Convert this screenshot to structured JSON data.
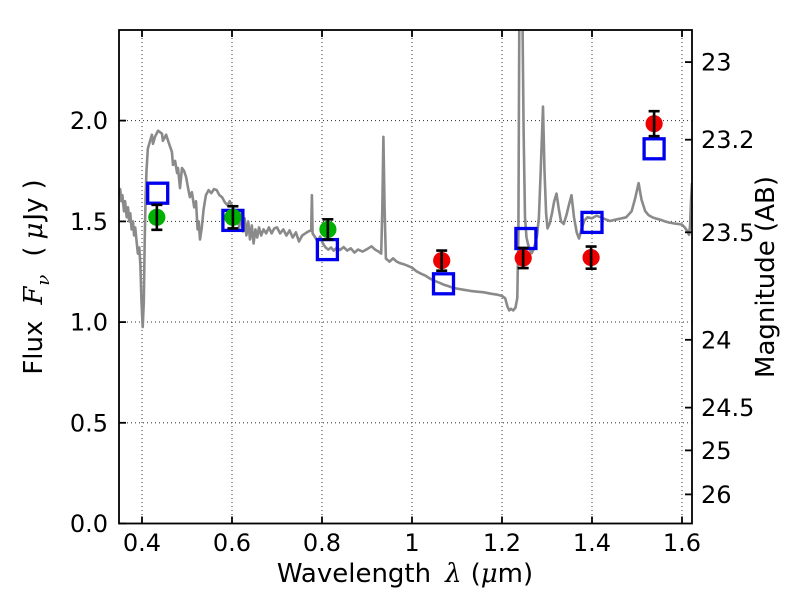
{
  "chart_data": {
    "type": "line",
    "title": "",
    "description": "Spectral energy distribution: gray model spectrum with photometric points (green/red filled circles with error bars, blue open squares) and dual flux/AB-magnitude axes",
    "xlabel_parts": [
      {
        "t": "Wavelength"
      },
      {
        "t": "λ",
        "i": 1,
        "dx": 14
      },
      {
        "t": "(",
        "dx": 9
      },
      {
        "t": "μ",
        "i": 1
      },
      {
        "t": "m)"
      }
    ],
    "ylabel_left_parts": [
      {
        "t": "Flux"
      },
      {
        "t": "F",
        "i": 1,
        "dx": 16
      },
      {
        "t": "ν",
        "i": 1,
        "sub": 1,
        "dx": 1
      },
      {
        "t": "(",
        "dx": 18
      },
      {
        "t": "μ",
        "i": 1,
        "dx": 7
      },
      {
        "t": "Jy",
        "dx": 2
      },
      {
        "t": ")",
        "dx": 8
      }
    ],
    "x_axis": {
      "min": 0.3489,
      "max": 1.6222,
      "ticks": [
        {
          "v": 0.4,
          "label": "0.4"
        },
        {
          "v": 0.6,
          "label": "0.6"
        },
        {
          "v": 0.8,
          "label": "0.8"
        },
        {
          "v": 1.0,
          "label": "1"
        },
        {
          "v": 1.2,
          "label": "1.2"
        },
        {
          "v": 1.4,
          "label": "1.4"
        },
        {
          "v": 1.6,
          "label": "1.6"
        }
      ]
    },
    "y_axis_left": {
      "min": 0,
      "max": 2.45,
      "ticks": [
        {
          "v": 0.0,
          "label": "0.0"
        },
        {
          "v": 0.5,
          "label": "0.5"
        },
        {
          "v": 1.0,
          "label": "1.0"
        },
        {
          "v": 1.5,
          "label": "1.5"
        },
        {
          "v": 2.0,
          "label": "2.0"
        }
      ]
    },
    "y_axis_right": {
      "label": "Magnitude (AB)",
      "ab_zeropoint_ujy": 23.9,
      "ticks": [
        {
          "v": 23,
          "label": "23"
        },
        {
          "v": 23.2,
          "label": "23.2"
        },
        {
          "v": 23.5,
          "label": "23.5"
        },
        {
          "v": 24,
          "label": "24"
        },
        {
          "v": 24.5,
          "label": "24.5"
        },
        {
          "v": 25,
          "label": "25"
        },
        {
          "v": 26,
          "label": "26"
        }
      ]
    },
    "grid": {
      "show": true,
      "style": "dotted"
    },
    "style": {
      "background": "#ffffff",
      "frame_color": "#000000",
      "grid_color": "#454545",
      "error_bar_color": "#000000"
    },
    "spectrum": {
      "id": "model-spectrum",
      "color": "#8a8a8a",
      "points": [
        [
          0.349,
          1.62
        ],
        [
          0.3515,
          1.66
        ],
        [
          0.354,
          1.6
        ],
        [
          0.3565,
          1.63
        ],
        [
          0.36,
          1.55
        ],
        [
          0.3625,
          1.6
        ],
        [
          0.366,
          1.52
        ],
        [
          0.369,
          1.57
        ],
        [
          0.3715,
          1.5
        ],
        [
          0.374,
          1.54
        ],
        [
          0.377,
          1.46
        ],
        [
          0.38,
          1.5
        ],
        [
          0.3825,
          1.43
        ],
        [
          0.385,
          1.47
        ],
        [
          0.388,
          1.4
        ],
        [
          0.391,
          1.34
        ],
        [
          0.394,
          1.37
        ],
        [
          0.3965,
          1.28
        ],
        [
          0.399,
          1.1
        ],
        [
          0.4015,
          0.975
        ],
        [
          0.404,
          1.1
        ],
        [
          0.406,
          1.4
        ],
        [
          0.408,
          1.62
        ],
        [
          0.41,
          1.75
        ],
        [
          0.413,
          1.86
        ],
        [
          0.418,
          1.9
        ],
        [
          0.422,
          1.93
        ],
        [
          0.4245,
          1.885
        ],
        [
          0.429,
          1.92
        ],
        [
          0.4355,
          1.95
        ],
        [
          0.4445,
          1.935
        ],
        [
          0.4465,
          1.9
        ],
        [
          0.4535,
          1.93
        ],
        [
          0.458,
          1.9
        ],
        [
          0.4665,
          1.845
        ],
        [
          0.469,
          1.78
        ],
        [
          0.4735,
          1.8
        ],
        [
          0.478,
          1.74
        ],
        [
          0.48,
          1.765
        ],
        [
          0.4845,
          1.665
        ],
        [
          0.489,
          1.765
        ],
        [
          0.4935,
          1.75
        ],
        [
          0.498,
          1.72
        ],
        [
          0.502,
          1.67
        ],
        [
          0.5065,
          1.62
        ],
        [
          0.511,
          1.645
        ],
        [
          0.516,
          1.57
        ],
        [
          0.52,
          1.6
        ],
        [
          0.5235,
          1.46
        ],
        [
          0.526,
          1.5
        ],
        [
          0.529,
          1.41
        ],
        [
          0.533,
          1.47
        ],
        [
          0.537,
          1.56
        ],
        [
          0.542,
          1.63
        ],
        [
          0.548,
          1.655
        ],
        [
          0.554,
          1.64
        ],
        [
          0.56,
          1.66
        ],
        [
          0.566,
          1.655
        ],
        [
          0.572,
          1.63
        ],
        [
          0.578,
          1.62
        ],
        [
          0.584,
          1.595
        ],
        [
          0.59,
          1.58
        ],
        [
          0.595,
          1.6
        ],
        [
          0.6,
          1.578
        ],
        [
          0.606,
          1.55
        ],
        [
          0.611,
          1.54
        ],
        [
          0.616,
          1.47
        ],
        [
          0.62,
          1.54
        ],
        [
          0.624,
          1.45
        ],
        [
          0.628,
          1.515
        ],
        [
          0.632,
          1.43
        ],
        [
          0.636,
          1.5
        ],
        [
          0.64,
          1.41
        ],
        [
          0.644,
          1.48
        ],
        [
          0.648,
          1.39
        ],
        [
          0.652,
          1.46
        ],
        [
          0.656,
          1.42
        ],
        [
          0.66,
          1.47
        ],
        [
          0.665,
          1.43
        ],
        [
          0.67,
          1.46
        ],
        [
          0.676,
          1.44
        ],
        [
          0.682,
          1.47
        ],
        [
          0.688,
          1.44
        ],
        [
          0.694,
          1.465
        ],
        [
          0.7,
          1.47
        ],
        [
          0.707,
          1.44
        ],
        [
          0.714,
          1.46
        ],
        [
          0.721,
          1.43
        ],
        [
          0.728,
          1.455
        ],
        [
          0.735,
          1.42
        ],
        [
          0.742,
          1.445
        ],
        [
          0.749,
          1.4
        ],
        [
          0.756,
          1.43
        ],
        [
          0.763,
          1.44
        ],
        [
          0.77,
          1.45
        ],
        [
          0.776,
          1.455
        ],
        [
          0.7775,
          1.63
        ],
        [
          0.779,
          1.44
        ],
        [
          0.785,
          1.42
        ],
        [
          0.79,
          1.4
        ],
        [
          0.796,
          1.425
        ],
        [
          0.802,
          1.39
        ],
        [
          0.808,
          1.37
        ],
        [
          0.814,
          1.36
        ],
        [
          0.82,
          1.37
        ],
        [
          0.826,
          1.355
        ],
        [
          0.833,
          1.37
        ],
        [
          0.84,
          1.358
        ],
        [
          0.848,
          1.372
        ],
        [
          0.856,
          1.355
        ],
        [
          0.864,
          1.366
        ],
        [
          0.872,
          1.345
        ],
        [
          0.88,
          1.36
        ],
        [
          0.89,
          1.35
        ],
        [
          0.9,
          1.362
        ],
        [
          0.91,
          1.376
        ],
        [
          0.918,
          1.36
        ],
        [
          0.926,
          1.35
        ],
        [
          0.9315,
          1.34
        ],
        [
          0.934,
          1.56
        ],
        [
          0.9365,
          1.92
        ],
        [
          0.939,
          1.56
        ],
        [
          0.942,
          1.315
        ],
        [
          0.95,
          1.3
        ],
        [
          0.958,
          1.316
        ],
        [
          0.966,
          1.3
        ],
        [
          0.974,
          1.292
        ],
        [
          0.982,
          1.287
        ],
        [
          0.99,
          1.28
        ],
        [
          1.0,
          1.27
        ],
        [
          1.01,
          1.252
        ],
        [
          1.02,
          1.24
        ],
        [
          1.03,
          1.23
        ],
        [
          1.04,
          1.216
        ],
        [
          1.05,
          1.205
        ],
        [
          1.06,
          1.196
        ],
        [
          1.07,
          1.186
        ],
        [
          1.08,
          1.179
        ],
        [
          1.09,
          1.171
        ],
        [
          1.1,
          1.166
        ],
        [
          1.115,
          1.16
        ],
        [
          1.13,
          1.155
        ],
        [
          1.145,
          1.151
        ],
        [
          1.16,
          1.148
        ],
        [
          1.175,
          1.141
        ],
        [
          1.19,
          1.136
        ],
        [
          1.2,
          1.13
        ],
        [
          1.207,
          1.118
        ],
        [
          1.212,
          1.078
        ],
        [
          1.216,
          1.058
        ],
        [
          1.22,
          1.066
        ],
        [
          1.225,
          1.058
        ],
        [
          1.23,
          1.072
        ],
        [
          1.234,
          1.12
        ],
        [
          1.2365,
          1.45
        ],
        [
          1.2385,
          2.5
        ],
        [
          1.2455,
          2.5
        ],
        [
          1.248,
          1.95
        ],
        [
          1.251,
          1.52
        ],
        [
          1.2545,
          1.42
        ],
        [
          1.258,
          1.385
        ],
        [
          1.262,
          1.36
        ],
        [
          1.266,
          1.342
        ],
        [
          1.27,
          1.36
        ],
        [
          1.274,
          1.39
        ],
        [
          1.278,
          1.43
        ],
        [
          1.282,
          1.52
        ],
        [
          1.286,
          1.75
        ],
        [
          1.291,
          2.07
        ],
        [
          1.2945,
          1.75
        ],
        [
          1.298,
          1.54
        ],
        [
          1.301,
          1.465
        ],
        [
          1.306,
          1.49
        ],
        [
          1.311,
          1.54
        ],
        [
          1.316,
          1.6
        ],
        [
          1.321,
          1.638
        ],
        [
          1.326,
          1.565
        ],
        [
          1.331,
          1.5
        ],
        [
          1.337,
          1.487
        ],
        [
          1.343,
          1.53
        ],
        [
          1.349,
          1.585
        ],
        [
          1.3545,
          1.63
        ],
        [
          1.36,
          1.52
        ],
        [
          1.366,
          1.445
        ],
        [
          1.371,
          1.415
        ],
        [
          1.377,
          1.465
        ],
        [
          1.383,
          1.505
        ],
        [
          1.39,
          1.52
        ],
        [
          1.4,
          1.515
        ],
        [
          1.41,
          1.528
        ],
        [
          1.42,
          1.52
        ],
        [
          1.43,
          1.51
        ],
        [
          1.44,
          1.502
        ],
        [
          1.452,
          1.508
        ],
        [
          1.464,
          1.514
        ],
        [
          1.476,
          1.52
        ],
        [
          1.488,
          1.55
        ],
        [
          1.496,
          1.615
        ],
        [
          1.5035,
          1.69
        ],
        [
          1.51,
          1.608
        ],
        [
          1.518,
          1.552
        ],
        [
          1.526,
          1.53
        ],
        [
          1.534,
          1.52
        ],
        [
          1.542,
          1.514
        ],
        [
          1.552,
          1.508
        ],
        [
          1.562,
          1.5
        ],
        [
          1.572,
          1.494
        ],
        [
          1.582,
          1.49
        ],
        [
          1.592,
          1.487
        ],
        [
          1.6,
          1.484
        ],
        [
          1.606,
          1.47
        ],
        [
          1.611,
          1.454
        ],
        [
          1.6155,
          1.434
        ],
        [
          1.618,
          1.48
        ],
        [
          1.62,
          1.6
        ],
        [
          1.6222,
          1.69
        ]
      ]
    },
    "series": [
      {
        "id": "blue-open-squares",
        "marker": "open-square",
        "color": "#0000ee",
        "points": [
          {
            "x": 0.435,
            "y": 1.64
          },
          {
            "x": 0.602,
            "y": 1.505
          },
          {
            "x": 0.812,
            "y": 1.36
          },
          {
            "x": 1.07,
            "y": 1.19
          },
          {
            "x": 1.253,
            "y": 1.415
          },
          {
            "x": 1.4,
            "y": 1.495
          },
          {
            "x": 1.538,
            "y": 1.86
          }
        ]
      },
      {
        "id": "green-circles",
        "marker": "filled-circle",
        "color": "#00b000",
        "points": [
          {
            "x": 0.433,
            "y": 1.52,
            "yerr": 0.062
          },
          {
            "x": 0.602,
            "y": 1.52,
            "yerr": 0.055
          },
          {
            "x": 0.813,
            "y": 1.46,
            "yerr": 0.05
          }
        ]
      },
      {
        "id": "red-circles",
        "marker": "filled-circle",
        "color": "#ee0000",
        "points": [
          {
            "x": 1.066,
            "y": 1.305,
            "yerr": 0.05
          },
          {
            "x": 1.247,
            "y": 1.318,
            "yerr": 0.05
          },
          {
            "x": 1.398,
            "y": 1.32,
            "yerr": 0.055
          },
          {
            "x": 1.538,
            "y": 1.985,
            "yerr": 0.062
          }
        ]
      }
    ]
  }
}
